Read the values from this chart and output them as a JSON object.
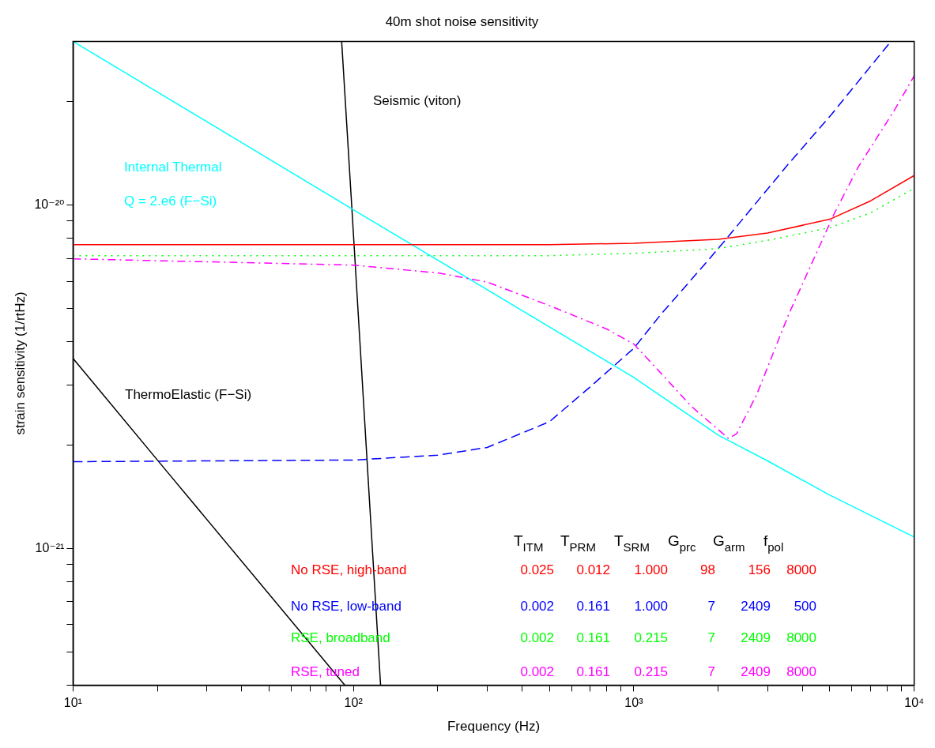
{
  "chart_data": {
    "type": "line",
    "title": "40m shot noise sensitivity",
    "xlabel": "Frequency (Hz)",
    "ylabel": "strain sensitivity (1/rtHz)",
    "log": "xy",
    "grid": false,
    "legend": false,
    "marker": "none",
    "xlim": [
      10,
      10000
    ],
    "ylim": [
      4e-22,
      3e-20
    ],
    "xticks": [
      {
        "value": 10,
        "label": "10¹"
      },
      {
        "value": 20,
        "label": null
      },
      {
        "value": 30,
        "label": null
      },
      {
        "value": 40,
        "label": null
      },
      {
        "value": 50,
        "label": null
      },
      {
        "value": 60,
        "label": null
      },
      {
        "value": 70,
        "label": null
      },
      {
        "value": 80,
        "label": null
      },
      {
        "value": 90,
        "label": null
      },
      {
        "value": 100,
        "label": "10²"
      },
      {
        "value": 200,
        "label": null
      },
      {
        "value": 300,
        "label": null
      },
      {
        "value": 400,
        "label": null
      },
      {
        "value": 500,
        "label": null
      },
      {
        "value": 600,
        "label": null
      },
      {
        "value": 700,
        "label": null
      },
      {
        "value": 800,
        "label": null
      },
      {
        "value": 900,
        "label": null
      },
      {
        "value": 1000,
        "label": "10³"
      },
      {
        "value": 2000,
        "label": null
      },
      {
        "value": 3000,
        "label": null
      },
      {
        "value": 4000,
        "label": null
      },
      {
        "value": 5000,
        "label": null
      },
      {
        "value": 6000,
        "label": null
      },
      {
        "value": 7000,
        "label": null
      },
      {
        "value": 8000,
        "label": null
      },
      {
        "value": 9000,
        "label": null
      },
      {
        "value": 10000,
        "label": "10⁴"
      }
    ],
    "yticks": [
      {
        "value": 4e-22,
        "label": null
      },
      {
        "value": 5e-22,
        "label": null
      },
      {
        "value": 6e-22,
        "label": null
      },
      {
        "value": 7e-22,
        "label": null
      },
      {
        "value": 8e-22,
        "label": null
      },
      {
        "value": 9e-22,
        "label": null
      },
      {
        "value": 1e-21,
        "label": "10⁻²¹"
      },
      {
        "value": 2e-21,
        "label": null
      },
      {
        "value": 3e-21,
        "label": null
      },
      {
        "value": 4e-21,
        "label": null
      },
      {
        "value": 5e-21,
        "label": null
      },
      {
        "value": 6e-21,
        "label": null
      },
      {
        "value": 7e-21,
        "label": null
      },
      {
        "value": 8e-21,
        "label": null
      },
      {
        "value": 9e-21,
        "label": null
      },
      {
        "value": 1e-20,
        "label": "10⁻²⁰"
      },
      {
        "value": 2e-20,
        "label": null
      }
    ],
    "series": [
      {
        "name": "No RSE, high-band",
        "color": "#ff0000",
        "line_style": "solid",
        "x": [
          10,
          100,
          500,
          1000,
          2000,
          3000,
          5000,
          7000,
          10000
        ],
        "values": [
          7.67e-21,
          7.67e-21,
          7.67e-21,
          7.75e-21,
          7.95e-21,
          8.3e-21,
          9.1e-21,
          1.03e-20,
          1.22e-20
        ]
      },
      {
        "name": "No RSE, low-band",
        "color": "#0000ff",
        "line_style": "dashed",
        "x": [
          10,
          100,
          200,
          300,
          500,
          700,
          1000,
          1247,
          1811,
          2109,
          2797,
          3565,
          5047,
          8260
        ],
        "values": [
          1.79e-21,
          1.81e-21,
          1.87e-21,
          1.97e-21,
          2.34e-21,
          2.96e-21,
          3.83e-21,
          4.8e-21,
          6.8e-21,
          7.87e-21,
          1.04e-20,
          1.32e-20,
          1.83e-20,
          3e-20
        ]
      },
      {
        "name": "RSE, broadband",
        "color": "#00ff00",
        "line_style": "dotted",
        "x": [
          10,
          100,
          500,
          1000,
          2000,
          3000,
          5000,
          7000,
          10000
        ],
        "values": [
          7.13e-21,
          7.13e-21,
          7.13e-21,
          7.24e-21,
          7.47e-21,
          7.9e-21,
          8.6e-21,
          9.5e-21,
          1.12e-20
        ]
      },
      {
        "name": "RSE, tuned",
        "color": "#ff00ff",
        "line_style": "dashdot",
        "x": [
          10,
          100,
          200,
          300,
          500,
          800,
          1000,
          1200,
          1600,
          2000,
          2180,
          2326,
          2740,
          3565,
          5186,
          6310,
          8530,
          10000
        ],
        "values": [
          6.98e-21,
          6.69e-21,
          6.35e-21,
          5.97e-21,
          5.1e-21,
          4.36e-21,
          3.94e-21,
          3.36e-21,
          2.6e-21,
          2.22e-21,
          2.09e-21,
          2.16e-21,
          2.8e-21,
          4.8e-21,
          9.45e-21,
          1.29e-20,
          1.9e-20,
          2.38e-20
        ]
      },
      {
        "name": "Internal Thermal",
        "color": "#00ffff",
        "line_style": "solid",
        "x": [
          10,
          100,
          1000,
          2000,
          3000,
          5000,
          10000
        ],
        "values": [
          3e-20,
          9.7e-21,
          3.15e-21,
          2.14e-21,
          1.8e-21,
          1.43e-21,
          1.08e-21
        ]
      },
      {
        "name": "Seismic (viton)",
        "color": "#000000",
        "line_style": "solid",
        "x": [
          90.8,
          98.6,
          125
        ],
        "values": [
          3e-20,
          1e-20,
          4e-22
        ]
      },
      {
        "name": "ThermoElastic (F−Si)",
        "color": "#000000",
        "line_style": "solid",
        "x": [
          10,
          21.7,
          93.2
        ],
        "values": [
          3.58e-21,
          1.67e-21,
          4e-22
        ]
      }
    ],
    "annotations": [
      "Q = 2.e6 (F−Si)",
      "T$_{ITM}$",
      "T$_{PRM}$",
      "T$_{SRM}$",
      "G$_{prc}$",
      "G$_{arm}$",
      "f$_{pol}$",
      "0.025",
      "0.012",
      "1.000",
      "98",
      "156",
      "8000",
      "0.002",
      "0.161",
      "1.000",
      "7",
      "2409",
      "500",
      "0.002",
      "0.161",
      "0.215",
      "7",
      "2409",
      "8000",
      "0.002",
      "0.161",
      "0.215",
      "7",
      "2409",
      "8000"
    ]
  }
}
